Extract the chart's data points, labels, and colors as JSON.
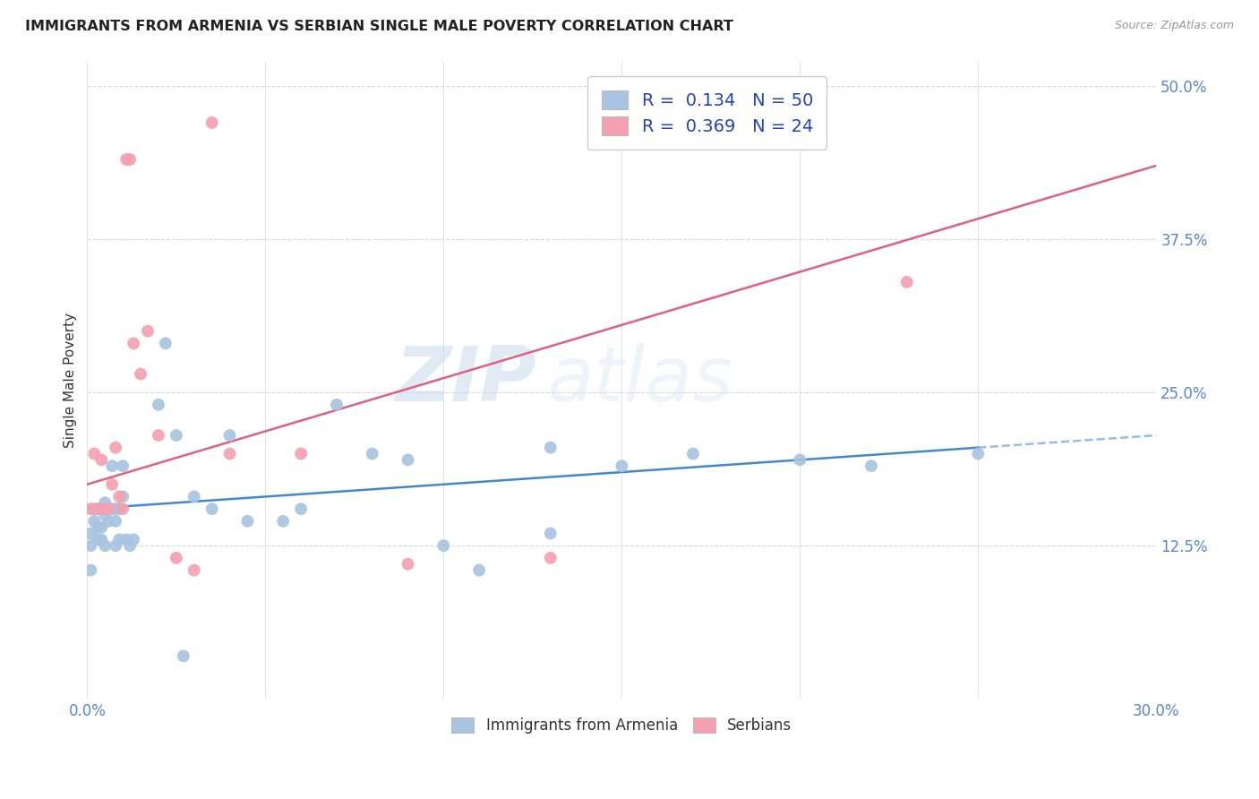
{
  "title": "IMMIGRANTS FROM ARMENIA VS SERBIAN SINGLE MALE POVERTY CORRELATION CHART",
  "source": "Source: ZipAtlas.com",
  "ylabel": "Single Male Poverty",
  "ytick_labels": [
    "12.5%",
    "25.0%",
    "37.5%",
    "50.0%"
  ],
  "ytick_values": [
    0.125,
    0.25,
    0.375,
    0.5
  ],
  "armenia_color": "#a8c4e0",
  "serbian_color": "#f4a0b0",
  "trend_armenia_color": "#4488cc",
  "trend_serbian_color": "#e06080",
  "background_color": "#ffffff",
  "grid_color": "#d8d8d8",
  "watermark_zip": "ZIP",
  "watermark_atlas": "atlas",
  "armenia_x": [
    0.001,
    0.001,
    0.001,
    0.002,
    0.002,
    0.003,
    0.003,
    0.003,
    0.004,
    0.004,
    0.004,
    0.005,
    0.005,
    0.005,
    0.006,
    0.006,
    0.007,
    0.007,
    0.008,
    0.008,
    0.008,
    0.009,
    0.009,
    0.01,
    0.01,
    0.011,
    0.012,
    0.013,
    0.02,
    0.022,
    0.025,
    0.027,
    0.03,
    0.035,
    0.04,
    0.045,
    0.055,
    0.06,
    0.07,
    0.08,
    0.09,
    0.1,
    0.11,
    0.13,
    0.15,
    0.17,
    0.2,
    0.22,
    0.25,
    0.13
  ],
  "armenia_y": [
    0.125,
    0.135,
    0.105,
    0.145,
    0.155,
    0.14,
    0.13,
    0.155,
    0.14,
    0.155,
    0.13,
    0.15,
    0.16,
    0.125,
    0.145,
    0.155,
    0.19,
    0.155,
    0.155,
    0.145,
    0.125,
    0.155,
    0.13,
    0.165,
    0.19,
    0.13,
    0.125,
    0.13,
    0.24,
    0.29,
    0.215,
    0.035,
    0.165,
    0.155,
    0.215,
    0.145,
    0.145,
    0.155,
    0.24,
    0.2,
    0.195,
    0.125,
    0.105,
    0.205,
    0.19,
    0.2,
    0.195,
    0.19,
    0.2,
    0.135
  ],
  "serbian_x": [
    0.001,
    0.002,
    0.003,
    0.004,
    0.005,
    0.006,
    0.007,
    0.008,
    0.009,
    0.01,
    0.011,
    0.012,
    0.013,
    0.015,
    0.017,
    0.02,
    0.025,
    0.03,
    0.035,
    0.04,
    0.06,
    0.09,
    0.13,
    0.23
  ],
  "serbian_y": [
    0.155,
    0.2,
    0.155,
    0.195,
    0.155,
    0.155,
    0.175,
    0.205,
    0.165,
    0.155,
    0.44,
    0.44,
    0.29,
    0.265,
    0.3,
    0.215,
    0.115,
    0.105,
    0.47,
    0.2,
    0.2,
    0.11,
    0.115,
    0.34
  ],
  "R_armenia": 0.134,
  "N_armenia": 50,
  "R_serbian": 0.369,
  "N_serbian": 24,
  "xmin": 0.0,
  "xmax": 0.3,
  "ymin": 0.0,
  "ymax": 0.52,
  "trend_arm_x0": 0.0,
  "trend_arm_y0": 0.155,
  "trend_arm_x1": 0.25,
  "trend_arm_y1": 0.205,
  "trend_ser_x0": 0.0,
  "trend_ser_y0": 0.175,
  "trend_ser_x1": 0.3,
  "trend_ser_y1": 0.435
}
